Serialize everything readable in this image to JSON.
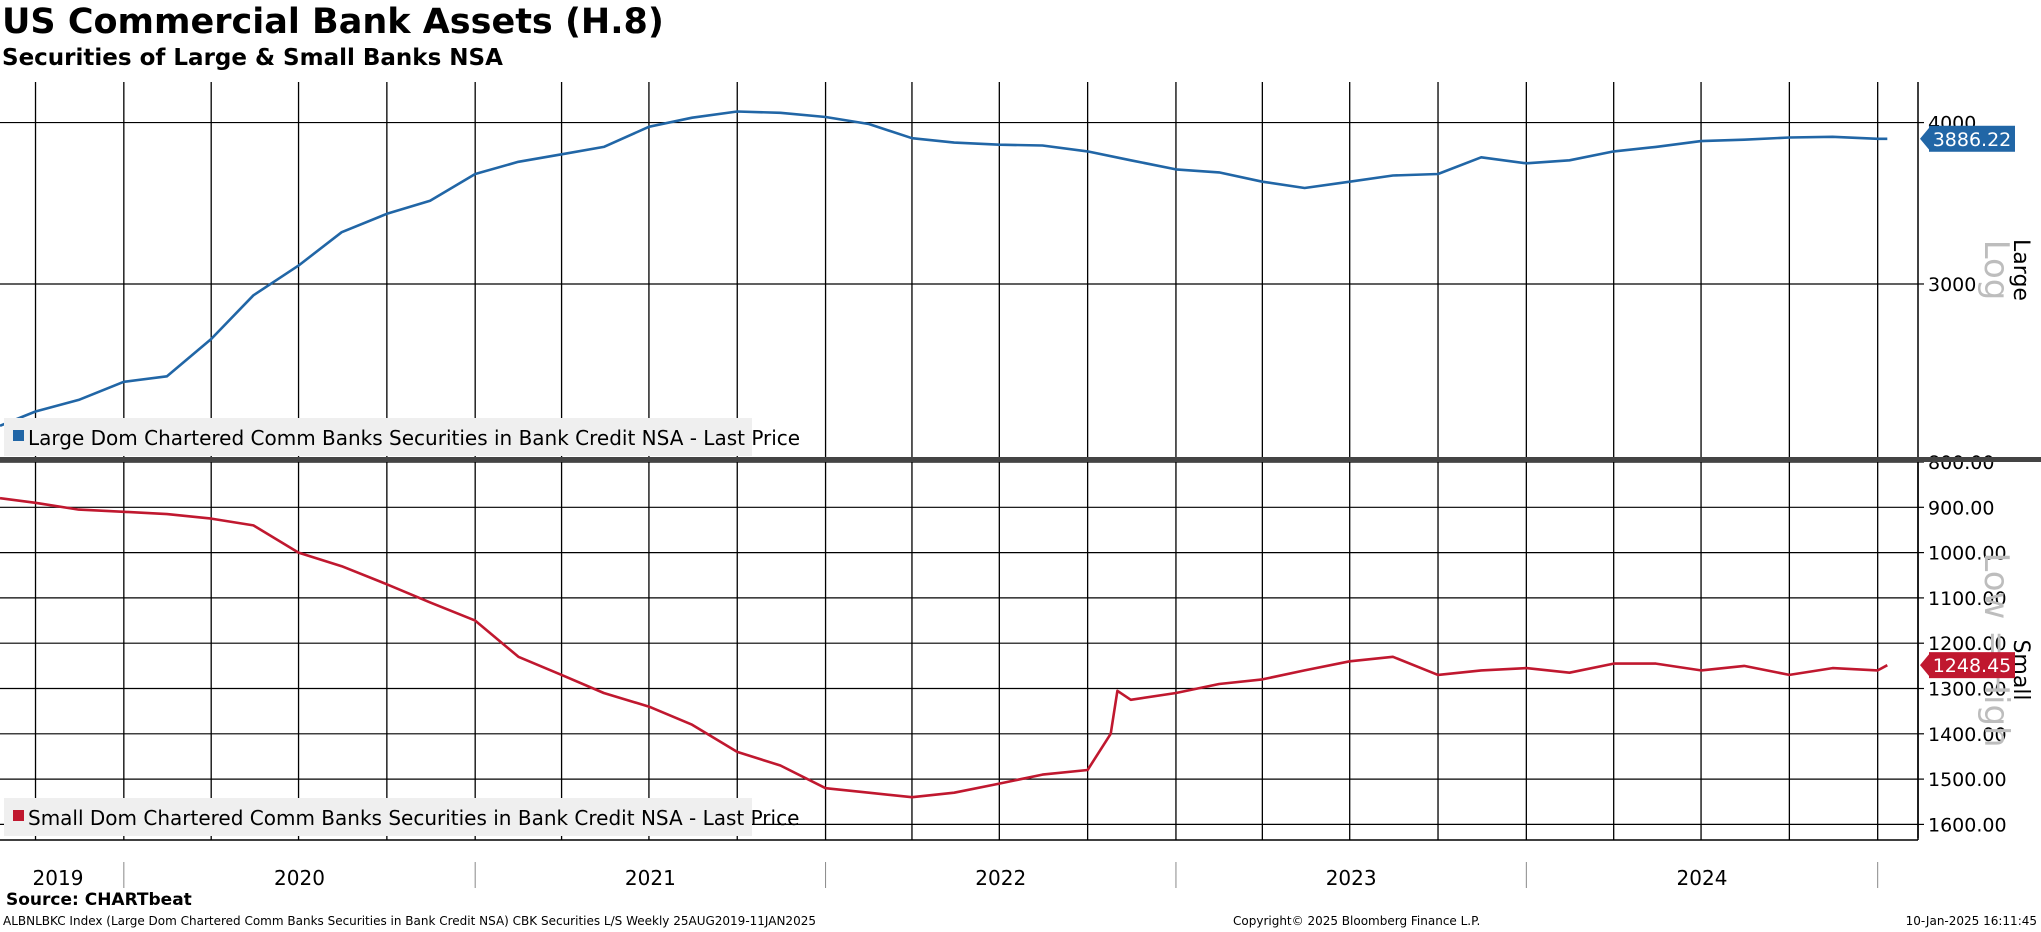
{
  "header": {
    "title": "US Commercial Bank Assets (H.8)",
    "subtitle": "Securities of Large & Small Banks NSA"
  },
  "footer": {
    "source": "Source: CHARTbeat",
    "left": "ALBNLBKC Index (Large Dom Chartered Comm Banks Securities in Bank Credit NSA) CBK Securities L/S  Weekly 25AUG2019-11JAN2025",
    "middle": "Copyright© 2025 Bloomberg Finance L.P.",
    "right": "10-Jan-2025 16:11:45"
  },
  "chart_data": [
    {
      "type": "line",
      "panel": "top",
      "axis_label": "Large",
      "scale_watermark": "Log",
      "scale": "log",
      "ylim": [
        2200,
        4300
      ],
      "y_ticks": [
        4000,
        3000
      ],
      "y_tick_labels": [
        "4000",
        "3000"
      ],
      "last_value_label": "3886.22",
      "color": "#2166a6",
      "grid": true,
      "series": [
        {
          "name": "Large Dom Chartered Comm Banks Securities in Bank Credit NSA - Last Price",
          "x": [
            "2019-08-25",
            "2019-10-01",
            "2019-11-15",
            "2020-01-01",
            "2020-02-15",
            "2020-04-01",
            "2020-05-15",
            "2020-07-01",
            "2020-08-15",
            "2020-10-01",
            "2020-11-15",
            "2021-01-01",
            "2021-02-15",
            "2021-04-01",
            "2021-05-15",
            "2021-07-01",
            "2021-08-15",
            "2021-10-01",
            "2021-11-15",
            "2022-01-01",
            "2022-02-15",
            "2022-04-01",
            "2022-05-15",
            "2022-07-01",
            "2022-08-15",
            "2022-10-01",
            "2022-11-15",
            "2023-01-01",
            "2023-02-15",
            "2023-04-01",
            "2023-05-15",
            "2023-07-01",
            "2023-08-15",
            "2023-10-01",
            "2023-11-15",
            "2024-01-01",
            "2024-02-15",
            "2024-04-01",
            "2024-05-15",
            "2024-07-01",
            "2024-08-15",
            "2024-10-01",
            "2024-11-15",
            "2025-01-01",
            "2025-01-11"
          ],
          "values": [
            2330,
            2390,
            2440,
            2520,
            2545,
            2720,
            2940,
            3100,
            3290,
            3400,
            3480,
            3650,
            3730,
            3780,
            3830,
            3970,
            4035,
            4080,
            4070,
            4040,
            3990,
            3890,
            3860,
            3845,
            3840,
            3800,
            3740,
            3680,
            3660,
            3600,
            3560,
            3600,
            3640,
            3650,
            3760,
            3720,
            3740,
            3800,
            3830,
            3870,
            3880,
            3895,
            3900,
            3886,
            3886.22
          ]
        }
      ]
    },
    {
      "type": "line",
      "panel": "bottom",
      "axis_label": "Small",
      "scale_watermark": "Low = High",
      "inverted": true,
      "ylim": [
        800,
        1630
      ],
      "y_ticks": [
        800,
        900,
        1000,
        1100,
        1200,
        1300,
        1400,
        1500,
        1600
      ],
      "y_tick_labels": [
        "800.00",
        "900.00",
        "1000.00",
        "1100.00",
        "1200.00",
        "1300.00",
        "1400.00",
        "1500.00",
        "1600.00"
      ],
      "last_value_label": "1248.45",
      "color": "#c0182f",
      "grid": true,
      "series": [
        {
          "name": "Small Dom Chartered Comm Banks Securities in Bank Credit NSA - Last Price",
          "x": [
            "2019-08-25",
            "2019-10-01",
            "2019-11-15",
            "2020-01-01",
            "2020-02-15",
            "2020-04-01",
            "2020-05-15",
            "2020-07-01",
            "2020-08-15",
            "2020-10-01",
            "2020-11-15",
            "2021-01-01",
            "2021-02-15",
            "2021-04-01",
            "2021-05-15",
            "2021-07-01",
            "2021-08-15",
            "2021-10-01",
            "2021-11-15",
            "2022-01-01",
            "2022-02-15",
            "2022-04-01",
            "2022-05-15",
            "2022-07-01",
            "2022-08-15",
            "2022-10-01",
            "2022-10-25",
            "2022-11-01",
            "2022-11-15",
            "2023-01-01",
            "2023-02-15",
            "2023-04-01",
            "2023-05-15",
            "2023-07-01",
            "2023-08-15",
            "2023-10-01",
            "2023-11-15",
            "2024-01-01",
            "2024-02-15",
            "2024-04-01",
            "2024-05-15",
            "2024-07-01",
            "2024-08-15",
            "2024-10-01",
            "2024-11-15",
            "2025-01-01",
            "2025-01-11"
          ],
          "values": [
            880,
            890,
            905,
            910,
            915,
            925,
            940,
            1000,
            1030,
            1070,
            1110,
            1150,
            1230,
            1270,
            1310,
            1340,
            1380,
            1440,
            1470,
            1520,
            1530,
            1540,
            1530,
            1510,
            1490,
            1480,
            1400,
            1305,
            1325,
            1310,
            1290,
            1280,
            1260,
            1240,
            1230,
            1270,
            1260,
            1255,
            1265,
            1245,
            1245,
            1260,
            1250,
            1270,
            1255,
            1260,
            1248.45
          ]
        }
      ]
    }
  ],
  "x_axis": {
    "years": [
      "2019",
      "2020",
      "2021",
      "2022",
      "2023",
      "2024"
    ]
  }
}
